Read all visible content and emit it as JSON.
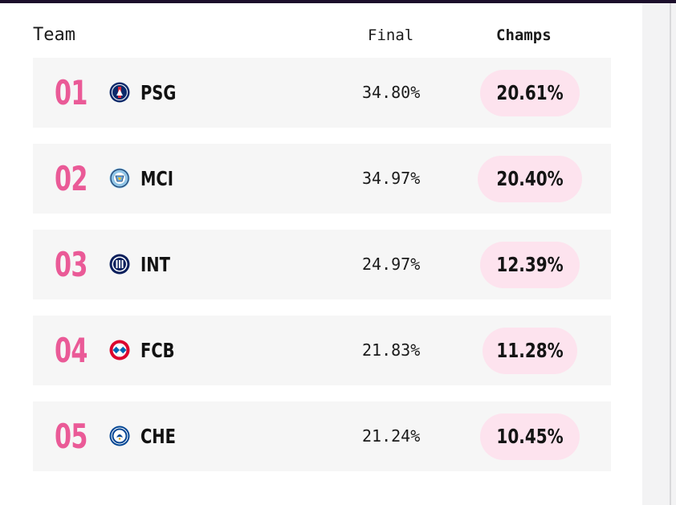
{
  "header": {
    "team_label": "Team",
    "final_label": "Final",
    "champs_label": "Champs"
  },
  "teams": [
    {
      "rank": "01",
      "abbr": "PSG",
      "crest_icon": "psg-crest-icon",
      "final": "34.80%",
      "champs": "20.61%"
    },
    {
      "rank": "02",
      "abbr": "MCI",
      "crest_icon": "man-city-crest-icon",
      "final": "34.97%",
      "champs": "20.40%"
    },
    {
      "rank": "03",
      "abbr": "INT",
      "crest_icon": "inter-crest-icon",
      "final": "24.97%",
      "champs": "12.39%"
    },
    {
      "rank": "04",
      "abbr": "FCB",
      "crest_icon": "bayern-crest-icon",
      "final": "21.83%",
      "champs": "11.28%"
    },
    {
      "rank": "05",
      "abbr": "CHE",
      "crest_icon": "chelsea-crest-icon",
      "final": "21.24%",
      "champs": "10.45%"
    }
  ],
  "colors": {
    "rank_pink": "#ea5a97",
    "pill_bg": "#fde3ee",
    "row_bg": "#f6f6f6",
    "text_dark": "#121212"
  }
}
